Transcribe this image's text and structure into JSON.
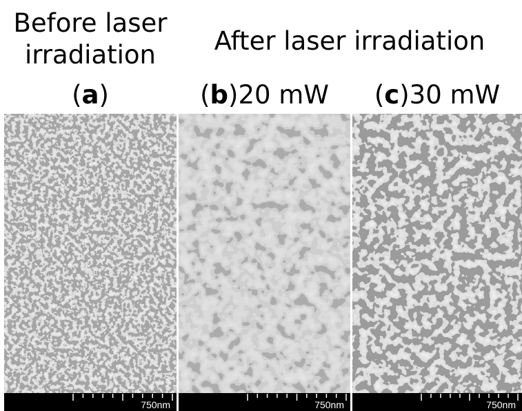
{
  "header": {
    "before": [
      "Before laser",
      "irradiation"
    ],
    "after": "After laser irradiation"
  },
  "panels": [
    {
      "open": "(",
      "letter": "a",
      "close": ")",
      "scale_bar": "750nm"
    },
    {
      "open": "(",
      "letter": "b",
      "close": ")",
      "power": "20 mW",
      "scale_bar": "750nm"
    },
    {
      "open": "(",
      "letter": "c",
      "close": ")",
      "power": "30 mW",
      "scale_bar": "750nm"
    }
  ]
}
